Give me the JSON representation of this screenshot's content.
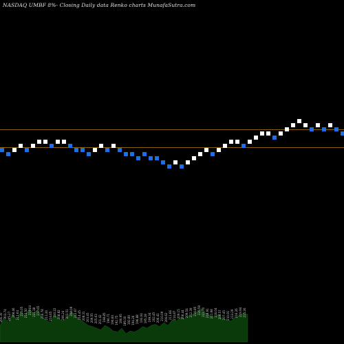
{
  "chart_data": {
    "type": "renko",
    "title": "NASDAQ UMBF 8%-  Closing Daily data  Renko  charts MunafaSutra.com",
    "background": "#000000",
    "colors": {
      "up_brick": "#ffffff",
      "down_brick": "#1e6ee6",
      "reference_lines": "#b8860b",
      "volume_fill": "#0a3a0a",
      "volume_labels": "#c8c8c8"
    },
    "reference_lines": [
      1,
      5
    ],
    "bricks": [
      {
        "level": 0,
        "dir": "down"
      },
      {
        "level": -1,
        "dir": "down"
      },
      {
        "level": 0,
        "dir": "up"
      },
      {
        "level": 1,
        "dir": "up"
      },
      {
        "level": 0,
        "dir": "down"
      },
      {
        "level": 1,
        "dir": "up"
      },
      {
        "level": 2,
        "dir": "up"
      },
      {
        "level": 2,
        "dir": "up"
      },
      {
        "level": 1,
        "dir": "down"
      },
      {
        "level": 2,
        "dir": "up"
      },
      {
        "level": 2,
        "dir": "up"
      },
      {
        "level": 1,
        "dir": "down"
      },
      {
        "level": 0,
        "dir": "down"
      },
      {
        "level": 0,
        "dir": "down"
      },
      {
        "level": -1,
        "dir": "down"
      },
      {
        "level": 0,
        "dir": "up"
      },
      {
        "level": 1,
        "dir": "up"
      },
      {
        "level": 0,
        "dir": "down"
      },
      {
        "level": 1,
        "dir": "up"
      },
      {
        "level": 0,
        "dir": "down"
      },
      {
        "level": -1,
        "dir": "down"
      },
      {
        "level": -1,
        "dir": "down"
      },
      {
        "level": -2,
        "dir": "down"
      },
      {
        "level": -1,
        "dir": "down"
      },
      {
        "level": -2,
        "dir": "down"
      },
      {
        "level": -2,
        "dir": "down"
      },
      {
        "level": -3,
        "dir": "down"
      },
      {
        "level": -4,
        "dir": "down"
      },
      {
        "level": -3,
        "dir": "up"
      },
      {
        "level": -4,
        "dir": "down"
      },
      {
        "level": -3,
        "dir": "up"
      },
      {
        "level": -2,
        "dir": "up"
      },
      {
        "level": -1,
        "dir": "up"
      },
      {
        "level": 0,
        "dir": "up"
      },
      {
        "level": -1,
        "dir": "down"
      },
      {
        "level": 0,
        "dir": "up"
      },
      {
        "level": 1,
        "dir": "up"
      },
      {
        "level": 2,
        "dir": "up"
      },
      {
        "level": 2,
        "dir": "up"
      },
      {
        "level": 1,
        "dir": "down"
      },
      {
        "level": 2,
        "dir": "up"
      },
      {
        "level": 3,
        "dir": "up"
      },
      {
        "level": 4,
        "dir": "up"
      },
      {
        "level": 4,
        "dir": "up"
      },
      {
        "level": 3,
        "dir": "down"
      },
      {
        "level": 4,
        "dir": "up"
      },
      {
        "level": 5,
        "dir": "up"
      },
      {
        "level": 6,
        "dir": "up"
      },
      {
        "level": 7,
        "dir": "up"
      },
      {
        "level": 6,
        "dir": "up"
      },
      {
        "level": 5,
        "dir": "down"
      },
      {
        "level": 6,
        "dir": "up"
      },
      {
        "level": 5,
        "dir": "down"
      },
      {
        "level": 6,
        "dir": "up"
      },
      {
        "level": 5,
        "dir": "down"
      },
      {
        "level": 4,
        "dir": "down"
      },
      {
        "level": 5,
        "dir": "up"
      },
      {
        "level": 6,
        "dir": "up"
      },
      {
        "level": 7,
        "dir": "up"
      },
      {
        "level": 8,
        "dir": "up"
      }
    ],
    "volume": [
      30,
      45,
      35,
      50,
      40,
      55,
      48,
      60,
      52,
      58,
      45,
      40,
      35,
      50,
      42,
      38,
      45,
      55,
      48,
      40,
      36,
      30,
      28,
      25,
      22,
      30,
      26,
      20,
      18,
      25,
      15,
      20,
      18,
      22,
      28,
      25,
      30,
      32,
      28,
      35,
      30,
      40,
      38,
      45,
      42,
      48,
      50,
      55,
      60,
      52,
      48,
      45,
      50,
      42,
      40,
      38,
      44,
      48,
      52,
      50
    ],
    "volume_labels": [
      "206.30",
      "203.74",
      "205.27",
      "208.46",
      "211.64",
      "215.05",
      "214.50",
      "219.04",
      "221.38",
      "217.65",
      "216.78",
      "213.30",
      "214.65",
      "210.22",
      "208.82",
      "206.24",
      "203.51",
      "208.09",
      "212.67",
      "214.45",
      "208.31",
      "203.45",
      "209.55",
      "205.63",
      "201.42",
      "198.85",
      "196.71",
      "194.60",
      "192.75",
      "190.95",
      "189.30",
      "192.80",
      "194.26",
      "196.88",
      "193.04",
      "195.28",
      "199.34",
      "202.45",
      "206.41",
      "210.09",
      "206.62",
      "211.66",
      "214.87",
      "209.15",
      "206.44",
      "209.54",
      "212.39",
      "216.85",
      "220.59",
      "222.70",
      "218.91",
      "211.98",
      "216.04",
      "208.57",
      "207.45",
      "210.91",
      "213.29",
      "216.26",
      "219.94",
      "215.26"
    ]
  }
}
